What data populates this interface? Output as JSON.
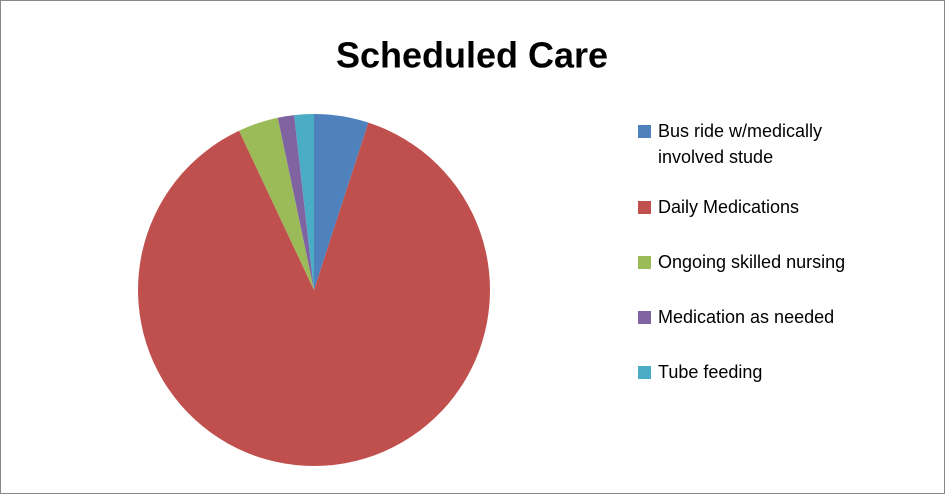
{
  "chart_data": {
    "type": "pie",
    "title": "Scheduled Care",
    "categories": [
      "Bus ride w/medically involved stude",
      "Daily Medications",
      "Ongoing skilled nursing",
      "Medication as needed",
      "Tube feeding"
    ],
    "values": [
      5,
      88,
      3.7,
      1.5,
      1.8
    ],
    "colors": [
      "#4f81bd",
      "#c0504d",
      "#9bbb59",
      "#8064a2",
      "#4bacc6"
    ],
    "legend": "right"
  }
}
